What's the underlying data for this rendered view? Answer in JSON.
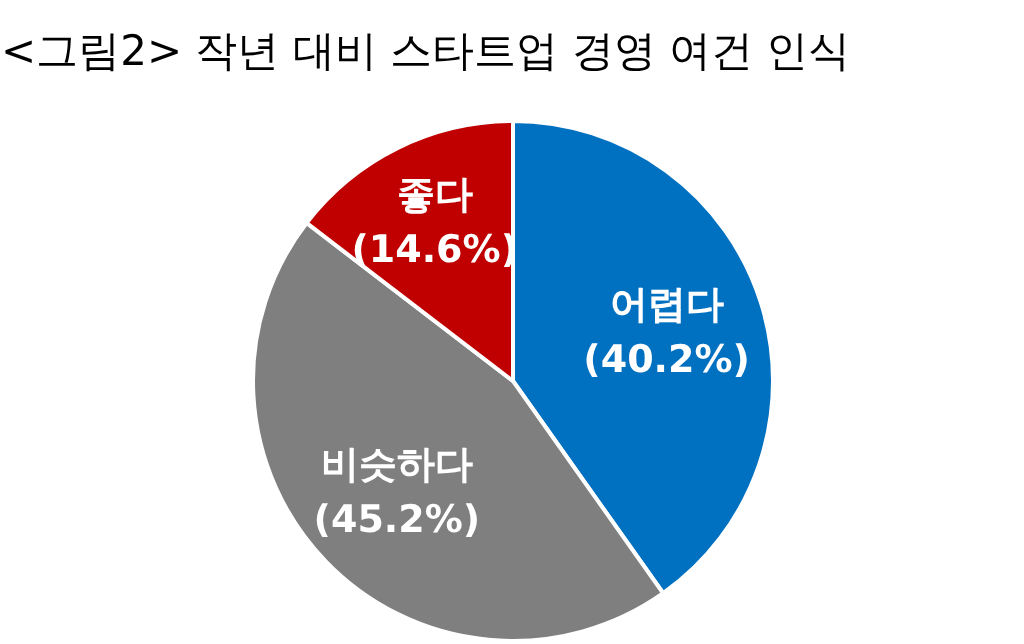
{
  "chart_data": {
    "type": "pie",
    "title": "<그림2> 작년 대비 스타트업 경영 여건 인식",
    "categories": [
      "어렵다",
      "비슷하다",
      "좋다"
    ],
    "values": [
      40.2,
      45.2,
      14.6
    ],
    "value_labels": [
      "(40.2%)",
      "(45.2%)",
      "(14.6%)"
    ],
    "colors": [
      "#0070c0",
      "#7f7f7f",
      "#c00000"
    ],
    "legend": false
  }
}
